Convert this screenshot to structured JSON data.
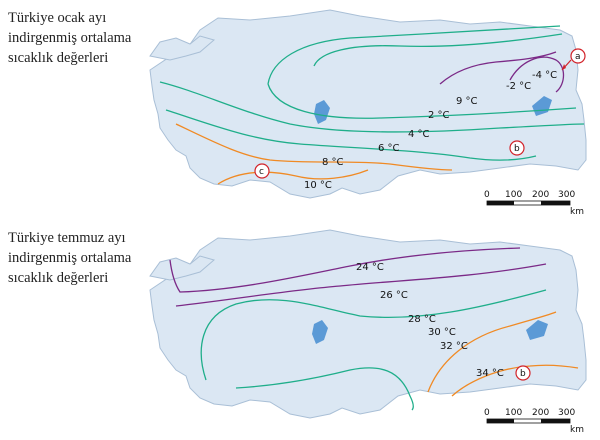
{
  "maps": [
    {
      "title_lines": [
        "Türkiye ocak ayı",
        "indirgenmiş ortalama",
        "sıcaklık değerleri"
      ],
      "isotherm_labels": [
        "-4 °C",
        "-2 °C",
        "9 °C",
        "2 °C",
        "4 °C",
        "6 °C",
        "8 °C",
        "10 °C"
      ],
      "markers": [
        "a",
        "b",
        "c"
      ],
      "scale": {
        "ticks": [
          "0",
          "100",
          "200",
          "300"
        ],
        "unit": "km"
      }
    },
    {
      "title_lines": [
        "Türkiye temmuz ayı",
        "indirgenmiş ortalama",
        "sıcaklık değerleri"
      ],
      "isotherm_labels": [
        "24 °C",
        "26 °C",
        "28 °C",
        "30 °C",
        "32 °C",
        "34 °C"
      ],
      "markers": [
        "b"
      ],
      "scale": {
        "ticks": [
          "0",
          "100",
          "200",
          "300"
        ],
        "unit": "km"
      }
    }
  ],
  "colors": {
    "land": "#dbe7f3",
    "coast": "#a9bfd6",
    "lake": "#5b9ad6",
    "cold_isotherm": "#7b2a87",
    "mid_isotherm": "#1fae8a",
    "warm_isotherm": "#f08a24",
    "marker": "#d2232a"
  }
}
